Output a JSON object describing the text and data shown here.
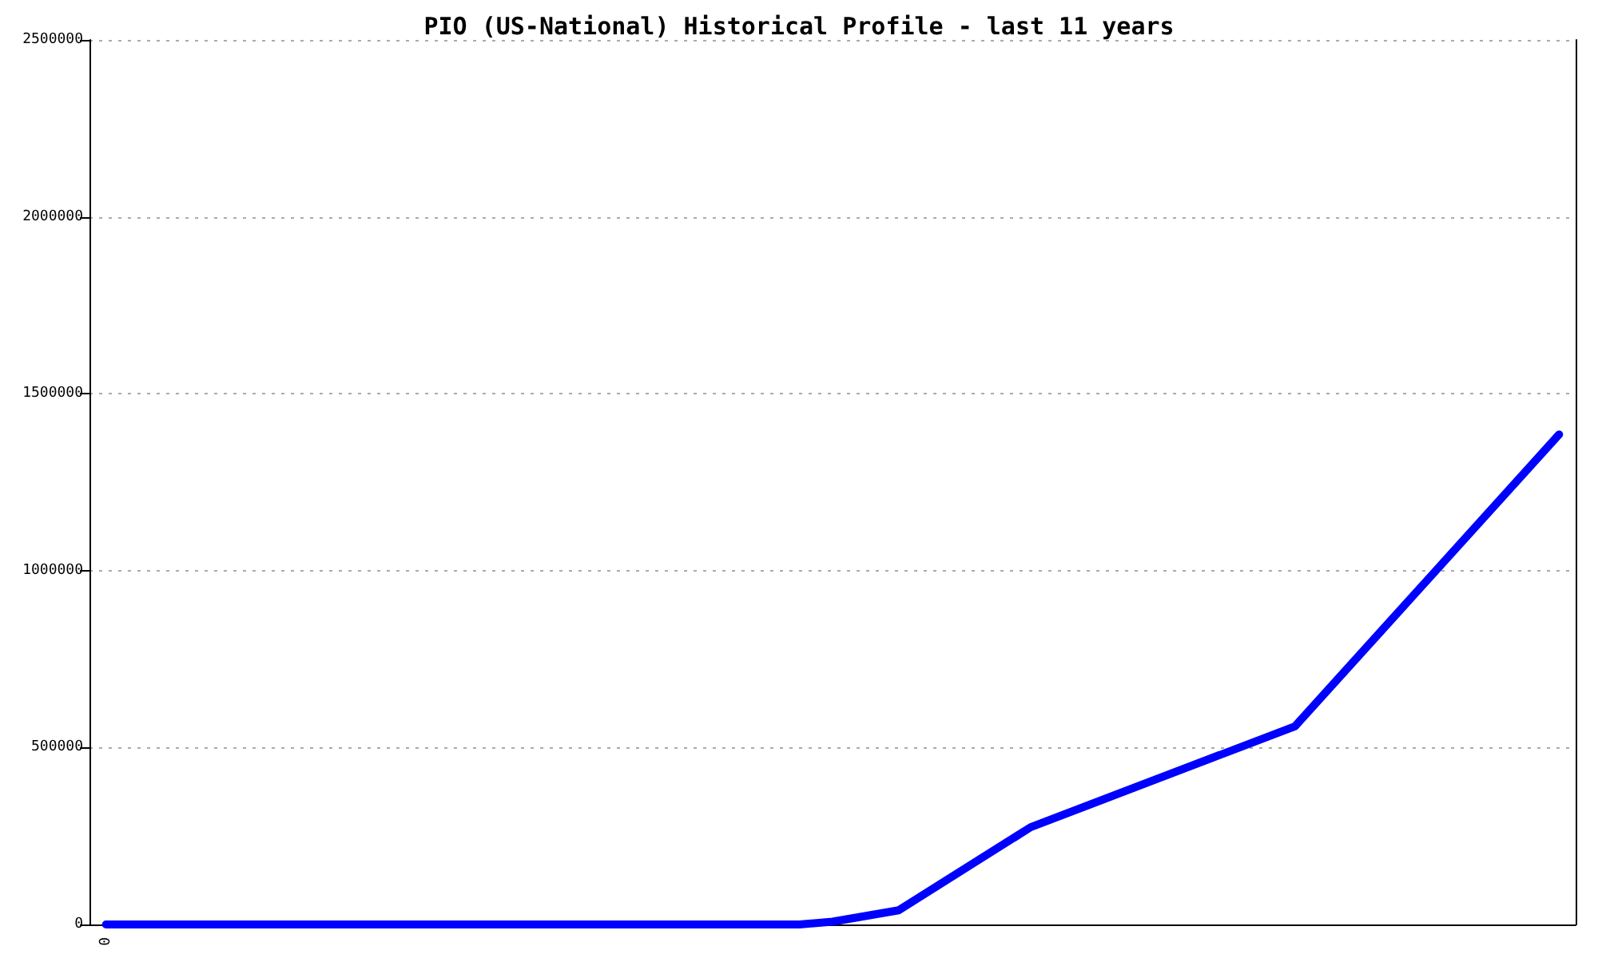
{
  "chart_data": {
    "type": "line",
    "title": "PIO (US-National) Historical Profile - last 11 years",
    "categories": [
      "0",
      null,
      null,
      null,
      null,
      null,
      null,
      null,
      null,
      null,
      null,
      null,
      null,
      null,
      null,
      null,
      null,
      null,
      null,
      null,
      null,
      null,
      null,
      null,
      null,
      null,
      null,
      null,
      null,
      null,
      null,
      null,
      null,
      null,
      null,
      null,
      null,
      null,
      null,
      null,
      null,
      null,
      null,
      null,
      null
    ],
    "series": [
      {
        "color": "#0000ff",
        "values": [
          0,
          null,
          null,
          null,
          null,
          null,
          null,
          null,
          null,
          null,
          null,
          null,
          null,
          null,
          null,
          null,
          null,
          null,
          null,
          null,
          null,
          0,
          8000,
          null,
          40000,
          null,
          null,
          null,
          275000,
          null,
          null,
          null,
          null,
          null,
          null,
          null,
          560000,
          null,
          null,
          null,
          null,
          null,
          null,
          null,
          1385000
        ]
      }
    ],
    "ylim": [
      0,
      2500000
    ],
    "yticks": [
      0,
      500000,
      1000000,
      1500000,
      2000000,
      2500000
    ],
    "grid": "y",
    "marker": "none",
    "line_style": "solid"
  }
}
